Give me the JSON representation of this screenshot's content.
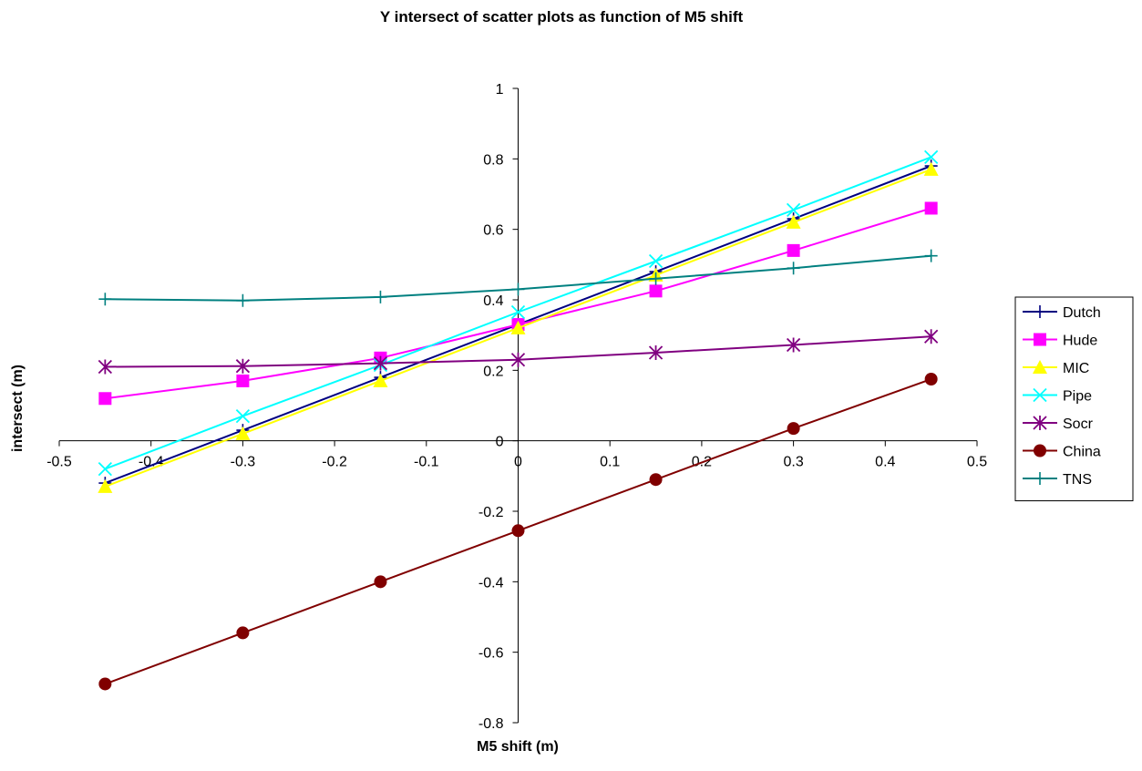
{
  "chart_data": {
    "type": "line",
    "title": "Y intersect of scatter plots as function of M5 shift",
    "xlabel": "M5 shift (m)",
    "ylabel": "intersect (m)",
    "xlim": [
      -0.5,
      0.5
    ],
    "ylim": [
      -0.8,
      1
    ],
    "x_ticks": [
      "-0.5",
      "-0.4",
      "-0.3",
      "-0.2",
      "-0.1",
      "0",
      "0.1",
      "0.2",
      "0.3",
      "0.4",
      "0.5"
    ],
    "y_ticks": [
      "-0.8",
      "-0.6",
      "-0.4",
      "-0.2",
      "0",
      "0.2",
      "0.4",
      "0.6",
      "0.8",
      "1"
    ],
    "grid": false,
    "legend_position": "right",
    "x": [
      -0.45,
      -0.3,
      -0.15,
      0,
      0.15,
      0.3,
      0.45
    ],
    "series": [
      {
        "name": "Dutch",
        "color": "#000080",
        "marker": "plus",
        "values": [
          -0.12,
          0.03,
          0.18,
          0.33,
          0.48,
          0.63,
          0.78
        ]
      },
      {
        "name": "Hude",
        "color": "#FF00FF",
        "marker": "square",
        "values": [
          0.12,
          0.17,
          0.235,
          0.33,
          0.425,
          0.54,
          0.66
        ]
      },
      {
        "name": "MIC",
        "color": "#FFFF00",
        "marker": "triangle",
        "values": [
          -0.13,
          0.02,
          0.17,
          0.32,
          0.47,
          0.62,
          0.77
        ]
      },
      {
        "name": "Pipe",
        "color": "#00FFFF",
        "marker": "x",
        "values": [
          -0.08,
          0.07,
          0.215,
          0.365,
          0.51,
          0.655,
          0.805
        ]
      },
      {
        "name": "Socr",
        "color": "#800080",
        "marker": "star",
        "values": [
          0.21,
          0.212,
          0.22,
          0.23,
          0.25,
          0.272,
          0.296
        ]
      },
      {
        "name": "China",
        "color": "#800000",
        "marker": "circle",
        "values": [
          -0.69,
          -0.545,
          -0.4,
          -0.255,
          -0.11,
          0.035,
          0.175
        ]
      },
      {
        "name": "TNS",
        "color": "#008080",
        "marker": "plus",
        "values": [
          0.402,
          0.398,
          0.408,
          0.43,
          0.46,
          0.49,
          0.525
        ]
      }
    ]
  }
}
